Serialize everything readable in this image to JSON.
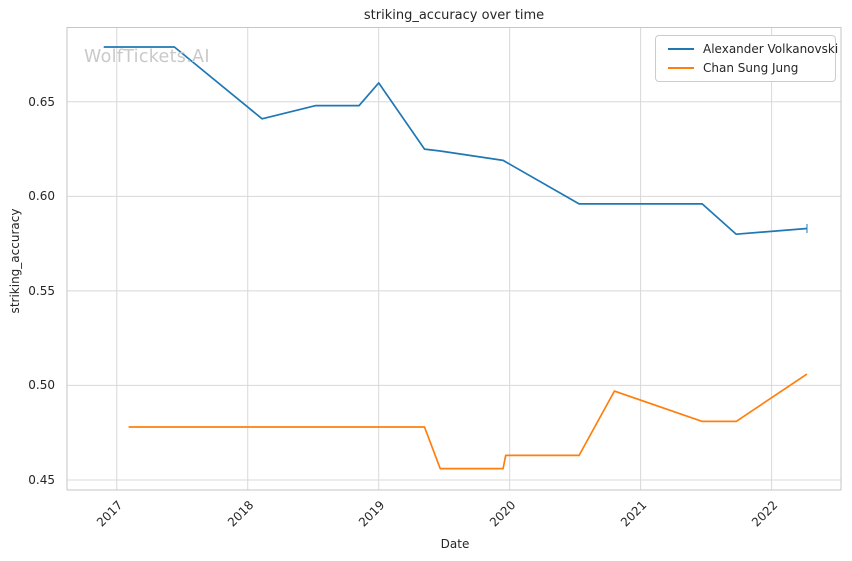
{
  "watermark": {
    "text": "WolfTickets.AI"
  },
  "chart_data": {
    "type": "line",
    "title": "striking_accuracy over time",
    "xlabel": "Date",
    "ylabel": "striking_accuracy",
    "grid": true,
    "legend_position": "upper right",
    "xlim": [
      2016.62,
      2022.53
    ],
    "ylim": [
      0.4447,
      0.6893
    ],
    "xticks": {
      "values": [
        2017,
        2018,
        2019,
        2020,
        2021,
        2022
      ],
      "labels": [
        "2017",
        "2018",
        "2019",
        "2020",
        "2021",
        "2022"
      ]
    },
    "yticks": {
      "values": [
        0.45,
        0.5,
        0.55,
        0.6,
        0.65
      ],
      "labels": [
        "0.45",
        "0.50",
        "0.55",
        "0.60",
        "0.65"
      ]
    },
    "series": [
      {
        "name": "Alexander Volkanovski",
        "color": "#1f77b4",
        "end_tick": true,
        "x": [
          2016.9,
          2017.44,
          2018.11,
          2018.52,
          2018.85,
          2019.0,
          2019.35,
          2019.47,
          2019.95,
          2020.53,
          2021.47,
          2021.73,
          2022.27
        ],
        "y": [
          0.679,
          0.679,
          0.641,
          0.648,
          0.648,
          0.66,
          0.625,
          0.624,
          0.619,
          0.596,
          0.596,
          0.58,
          0.583
        ]
      },
      {
        "name": "Chan Sung Jung",
        "color": "#ff7f0e",
        "end_tick": false,
        "x": [
          2017.09,
          2019.35,
          2019.47,
          2019.95,
          2019.97,
          2020.53,
          2020.8,
          2021.47,
          2021.73,
          2022.27
        ],
        "y": [
          0.478,
          0.478,
          0.456,
          0.456,
          0.463,
          0.463,
          0.497,
          0.481,
          0.481,
          0.506
        ]
      }
    ]
  }
}
